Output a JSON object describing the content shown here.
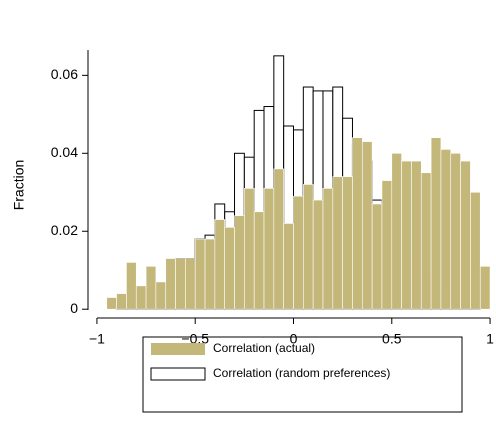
{
  "chart_data": {
    "type": "histogram",
    "y_label": "Fraction",
    "bins": [
      -1,
      -0.95,
      -0.9,
      -0.85,
      -0.8,
      -0.75,
      -0.7,
      -0.65,
      -0.6,
      -0.55,
      -0.5,
      -0.45,
      -0.4,
      -0.35,
      -0.3,
      -0.25,
      -0.2,
      -0.15,
      -0.1,
      -0.05,
      0,
      0.05,
      0.1,
      0.15,
      0.2,
      0.25,
      0.3,
      0.35,
      0.4,
      0.45,
      0.5,
      0.55,
      0.6,
      0.65,
      0.7,
      0.75,
      0.8,
      0.85,
      0.9,
      0.95,
      1
    ],
    "series": [
      {
        "name": "Correlation (random preferences)",
        "color": "#ffffff",
        "edge": "#000000",
        "values": [
          0,
          0,
          0.001,
          0.002,
          0.001,
          0.005,
          0.002,
          0.004,
          0.013,
          0.013,
          0.018,
          0.019,
          0.027,
          0.025,
          0.04,
          0.039,
          0.051,
          0.052,
          0.065,
          0.047,
          0.046,
          0.057,
          0.056,
          0.056,
          0.057,
          0.049,
          0.042,
          0.038,
          0.028,
          0.021,
          0.019,
          0.015,
          0.013,
          0.008,
          0.006,
          0.004,
          0.003,
          0.002,
          0.001,
          0
        ]
      },
      {
        "name": "Correlation (actual)",
        "color": "#c4b77a",
        "values": [
          0,
          0.003,
          0.004,
          0.012,
          0.006,
          0.011,
          0.007,
          0.013,
          0.013,
          0.013,
          0.018,
          0.018,
          0.023,
          0.021,
          0.024,
          0.031,
          0.025,
          0.031,
          0.036,
          0.022,
          0.029,
          0.032,
          0.028,
          0.031,
          0.034,
          0.034,
          0.044,
          0.043,
          0.027,
          0.033,
          0.04,
          0.038,
          0.038,
          0.035,
          0.044,
          0.041,
          0.04,
          0.038,
          0.03,
          0.011
        ]
      }
    ],
    "xlim": [
      -1.02,
      1.02
    ],
    "ylim": [
      -0.002,
      0.0665
    ],
    "xticks": [
      {
        "value": -1,
        "label": "−1"
      },
      {
        "value": -0.5,
        "label": "−0.5"
      },
      0,
      0.5,
      1
    ],
    "yticks": [
      0,
      0.02,
      0.04,
      0.06
    ]
  }
}
